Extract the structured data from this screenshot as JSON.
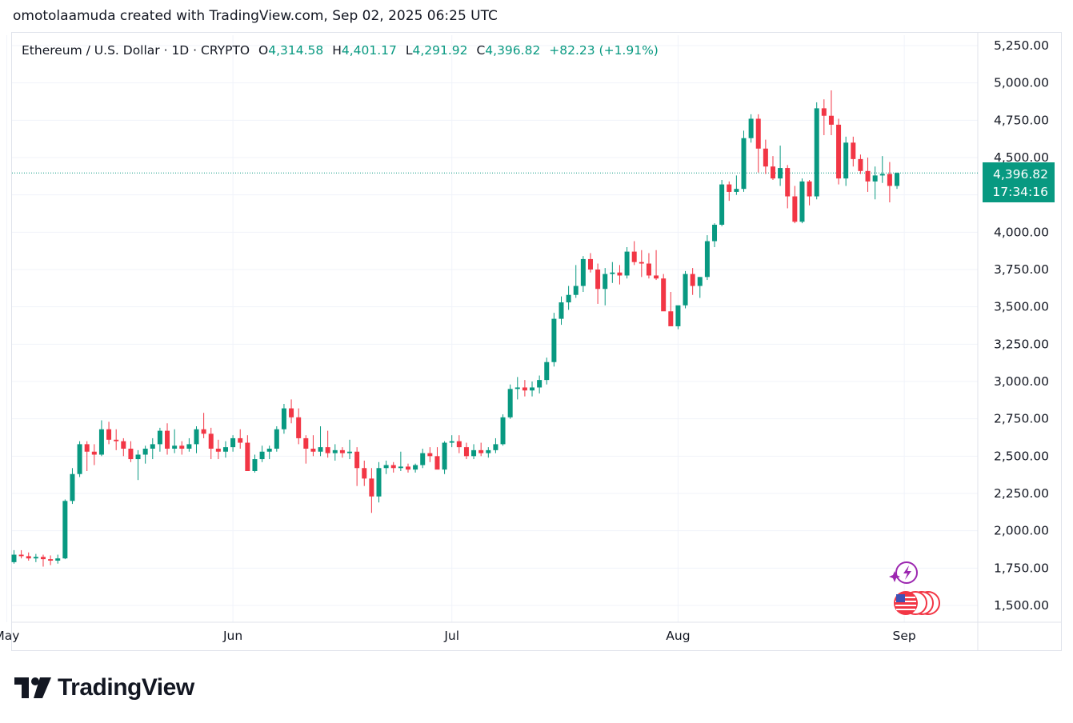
{
  "header": {
    "text": "omotolaamuda created with TradingView.com, Sep 02, 2025 06:25 UTC"
  },
  "legend": {
    "symbol": "Ethereum / U.S. Dollar · 1D · CRYPTO",
    "o_label": "O",
    "o_value": "4,314.58",
    "h_label": "H",
    "h_value": "4,401.17",
    "l_label": "L",
    "l_value": "4,291.92",
    "c_label": "C",
    "c_value": "4,396.82",
    "change": "+82.23 (+1.91%)"
  },
  "price_tag": {
    "price": "4,396.82",
    "countdown": "17:34:16"
  },
  "logo": {
    "text": "TradingView"
  },
  "colors": {
    "up": "#089981",
    "down": "#f23645",
    "grid": "#f0f3fa",
    "text": "#131722"
  },
  "chart_data": {
    "type": "candlestick",
    "title": "Ethereum / U.S. Dollar · 1D · CRYPTO",
    "y_ticks": [
      1500,
      1750,
      2000,
      2250,
      2500,
      2750,
      3000,
      3250,
      3500,
      3750,
      4000,
      4250,
      4500,
      4750,
      5000,
      5250
    ],
    "y_tick_labels": [
      "1,500.00",
      "1,750.00",
      "2,000.00",
      "",
      "2,500.00",
      "2,750.00",
      "3,000.00",
      "3,250.00",
      "3,500.00",
      "3,750.00",
      "4,000.00",
      "",
      "4,500.00",
      "4,750.00",
      "5,000.00",
      "5,250.00"
    ],
    "y_tick_labels_fix": {
      "2250": "2,250.00"
    },
    "ylim": [
      1440,
      5320
    ],
    "x_tick_labels": [
      {
        "label": "May",
        "x_index": -1
      },
      {
        "label": "Jun",
        "x_index": 30
      },
      {
        "label": "Jul",
        "x_index": 60
      },
      {
        "label": "Aug",
        "x_index": 91
      },
      {
        "label": "Sep",
        "x_index": 122
      }
    ],
    "last_price": 4396.82,
    "candles": [
      [
        1790,
        1870,
        1780,
        1840
      ],
      [
        1840,
        1870,
        1815,
        1830
      ],
      [
        1830,
        1855,
        1800,
        1815
      ],
      [
        1815,
        1845,
        1790,
        1825
      ],
      [
        1825,
        1840,
        1760,
        1810
      ],
      [
        1810,
        1835,
        1770,
        1800
      ],
      [
        1800,
        1840,
        1780,
        1815
      ],
      [
        1815,
        2210,
        1810,
        2200
      ],
      [
        2200,
        2420,
        2180,
        2380
      ],
      [
        2380,
        2600,
        2360,
        2580
      ],
      [
        2580,
        2600,
        2400,
        2530
      ],
      [
        2530,
        2580,
        2440,
        2510
      ],
      [
        2510,
        2740,
        2500,
        2680
      ],
      [
        2680,
        2730,
        2580,
        2610
      ],
      [
        2610,
        2680,
        2540,
        2600
      ],
      [
        2600,
        2620,
        2500,
        2550
      ],
      [
        2550,
        2600,
        2460,
        2480
      ],
      [
        2480,
        2540,
        2340,
        2510
      ],
      [
        2510,
        2570,
        2450,
        2550
      ],
      [
        2550,
        2620,
        2480,
        2580
      ],
      [
        2580,
        2690,
        2530,
        2670
      ],
      [
        2670,
        2720,
        2510,
        2550
      ],
      [
        2550,
        2680,
        2520,
        2570
      ],
      [
        2570,
        2600,
        2510,
        2550
      ],
      [
        2550,
        2620,
        2530,
        2580
      ],
      [
        2580,
        2700,
        2520,
        2680
      ],
      [
        2680,
        2790,
        2620,
        2650
      ],
      [
        2650,
        2690,
        2480,
        2550
      ],
      [
        2550,
        2610,
        2480,
        2530
      ],
      [
        2530,
        2600,
        2490,
        2560
      ],
      [
        2560,
        2640,
        2530,
        2620
      ],
      [
        2620,
        2680,
        2550,
        2590
      ],
      [
        2590,
        2640,
        2410,
        2400
      ],
      [
        2400,
        2510,
        2390,
        2480
      ],
      [
        2480,
        2570,
        2460,
        2530
      ],
      [
        2530,
        2570,
        2480,
        2550
      ],
      [
        2550,
        2700,
        2530,
        2680
      ],
      [
        2680,
        2850,
        2650,
        2820
      ],
      [
        2820,
        2880,
        2720,
        2760
      ],
      [
        2760,
        2820,
        2580,
        2620
      ],
      [
        2620,
        2640,
        2450,
        2550
      ],
      [
        2550,
        2640,
        2500,
        2530
      ],
      [
        2530,
        2700,
        2500,
        2560
      ],
      [
        2560,
        2670,
        2490,
        2520
      ],
      [
        2520,
        2580,
        2470,
        2540
      ],
      [
        2540,
        2560,
        2490,
        2520
      ],
      [
        2520,
        2610,
        2480,
        2530
      ],
      [
        2530,
        2560,
        2300,
        2420
      ],
      [
        2420,
        2470,
        2300,
        2350
      ],
      [
        2350,
        2420,
        2120,
        2230
      ],
      [
        2230,
        2460,
        2190,
        2420
      ],
      [
        2420,
        2470,
        2380,
        2440
      ],
      [
        2440,
        2460,
        2390,
        2420
      ],
      [
        2420,
        2530,
        2400,
        2430
      ],
      [
        2430,
        2450,
        2390,
        2410
      ],
      [
        2410,
        2450,
        2390,
        2440
      ],
      [
        2440,
        2550,
        2420,
        2520
      ],
      [
        2520,
        2560,
        2460,
        2500
      ],
      [
        2500,
        2560,
        2420,
        2410
      ],
      [
        2410,
        2600,
        2380,
        2590
      ],
      [
        2590,
        2640,
        2560,
        2600
      ],
      [
        2600,
        2640,
        2520,
        2560
      ],
      [
        2560,
        2590,
        2480,
        2500
      ],
      [
        2500,
        2580,
        2480,
        2540
      ],
      [
        2540,
        2590,
        2500,
        2520
      ],
      [
        2520,
        2560,
        2490,
        2540
      ],
      [
        2540,
        2620,
        2520,
        2580
      ],
      [
        2580,
        2780,
        2570,
        2760
      ],
      [
        2760,
        2980,
        2750,
        2950
      ],
      [
        2950,
        3030,
        2880,
        2960
      ],
      [
        2960,
        3010,
        2900,
        2940
      ],
      [
        2940,
        3000,
        2900,
        2960
      ],
      [
        2960,
        3040,
        2920,
        3010
      ],
      [
        3010,
        3160,
        2980,
        3130
      ],
      [
        3130,
        3460,
        3100,
        3420
      ],
      [
        3420,
        3570,
        3380,
        3530
      ],
      [
        3530,
        3640,
        3480,
        3580
      ],
      [
        3580,
        3780,
        3560,
        3640
      ],
      [
        3640,
        3840,
        3600,
        3820
      ],
      [
        3820,
        3860,
        3730,
        3750
      ],
      [
        3750,
        3790,
        3520,
        3620
      ],
      [
        3620,
        3760,
        3510,
        3720
      ],
      [
        3720,
        3800,
        3660,
        3730
      ],
      [
        3730,
        3780,
        3650,
        3710
      ],
      [
        3710,
        3900,
        3690,
        3870
      ],
      [
        3870,
        3940,
        3780,
        3800
      ],
      [
        3800,
        3880,
        3700,
        3790
      ],
      [
        3790,
        3860,
        3690,
        3710
      ],
      [
        3710,
        3880,
        3680,
        3690
      ],
      [
        3690,
        3720,
        3480,
        3470
      ],
      [
        3470,
        3600,
        3390,
        3370
      ],
      [
        3370,
        3500,
        3350,
        3510
      ],
      [
        3510,
        3740,
        3490,
        3720
      ],
      [
        3720,
        3760,
        3580,
        3640
      ],
      [
        3640,
        3700,
        3560,
        3700
      ],
      [
        3700,
        3980,
        3680,
        3940
      ],
      [
        3940,
        4060,
        3900,
        4050
      ],
      [
        4050,
        4350,
        4040,
        4320
      ],
      [
        4320,
        4340,
        4210,
        4270
      ],
      [
        4270,
        4380,
        4250,
        4290
      ],
      [
        4290,
        4680,
        4270,
        4630
      ],
      [
        4630,
        4790,
        4600,
        4760
      ],
      [
        4760,
        4790,
        4400,
        4560
      ],
      [
        4560,
        4620,
        4390,
        4440
      ],
      [
        4440,
        4510,
        4350,
        4360
      ],
      [
        4360,
        4580,
        4310,
        4430
      ],
      [
        4430,
        4450,
        4160,
        4240
      ],
      [
        4240,
        4310,
        4060,
        4070
      ],
      [
        4070,
        4360,
        4060,
        4340
      ],
      [
        4340,
        4350,
        4180,
        4240
      ],
      [
        4240,
        4870,
        4220,
        4830
      ],
      [
        4830,
        4890,
        4650,
        4780
      ],
      [
        4780,
        4950,
        4650,
        4720
      ],
      [
        4720,
        4760,
        4320,
        4360
      ],
      [
        4360,
        4640,
        4310,
        4600
      ],
      [
        4600,
        4640,
        4440,
        4490
      ],
      [
        4490,
        4520,
        4390,
        4410
      ],
      [
        4410,
        4500,
        4270,
        4340
      ],
      [
        4340,
        4440,
        4220,
        4380
      ],
      [
        4380,
        4510,
        4330,
        4390
      ],
      [
        4390,
        4470,
        4200,
        4310
      ],
      [
        4310,
        4400,
        4290,
        4397
      ]
    ]
  }
}
